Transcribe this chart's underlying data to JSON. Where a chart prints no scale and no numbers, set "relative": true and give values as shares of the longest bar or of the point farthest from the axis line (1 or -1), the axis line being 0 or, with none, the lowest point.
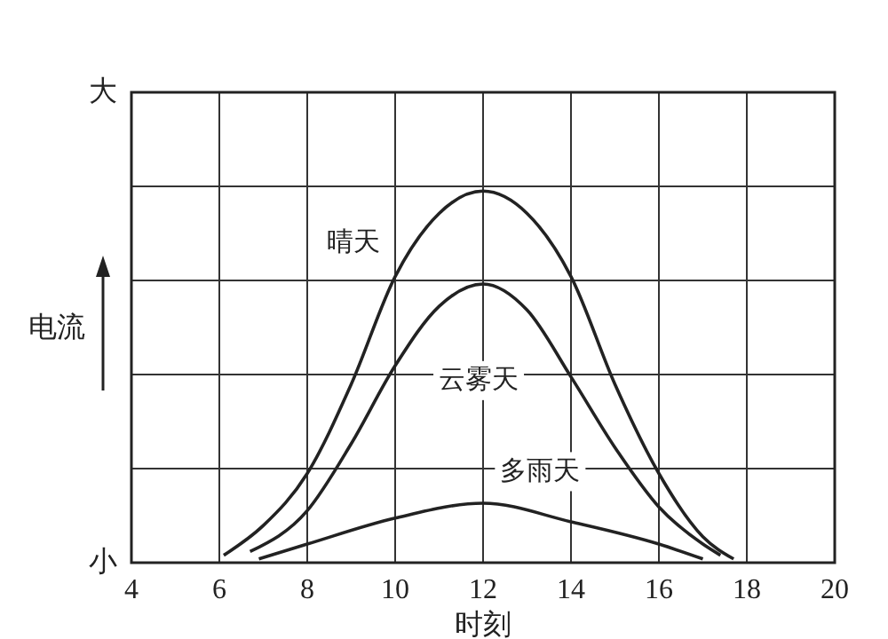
{
  "chart_data": {
    "type": "line",
    "xlabel": "时刻",
    "ylabel": "电流",
    "xlim": [
      4,
      20
    ],
    "xticks": [
      4,
      6,
      8,
      10,
      12,
      14,
      16,
      18,
      20
    ],
    "relative": true,
    "annotations": [
      "大",
      "小"
    ],
    "grid": true,
    "marker": "none",
    "line_style": "solid",
    "series": [
      {
        "name": "晴天",
        "color": "#222222",
        "x": [
          6.1,
          7,
          8,
          9,
          10,
          11,
          12,
          13,
          14,
          15,
          16,
          17,
          17.7
        ],
        "values": [
          0.02,
          0.1,
          0.24,
          0.48,
          0.77,
          0.94,
          1,
          0.94,
          0.77,
          0.48,
          0.24,
          0.07,
          0.01
        ]
      },
      {
        "name": "云雾天",
        "color": "#222222",
        "x": [
          6.7,
          8,
          9,
          10,
          11,
          12,
          13,
          14,
          15,
          16,
          17,
          17.4
        ],
        "values": [
          0.03,
          0.14,
          0.32,
          0.53,
          0.69,
          0.75,
          0.68,
          0.5,
          0.31,
          0.15,
          0.05,
          0.02
        ]
      },
      {
        "name": "多雨天",
        "color": "#222222",
        "x": [
          6.9,
          8,
          10,
          12,
          14,
          16,
          17
        ],
        "values": [
          0.01,
          0.05,
          0.12,
          0.16,
          0.11,
          0.05,
          0.01
        ]
      }
    ]
  }
}
